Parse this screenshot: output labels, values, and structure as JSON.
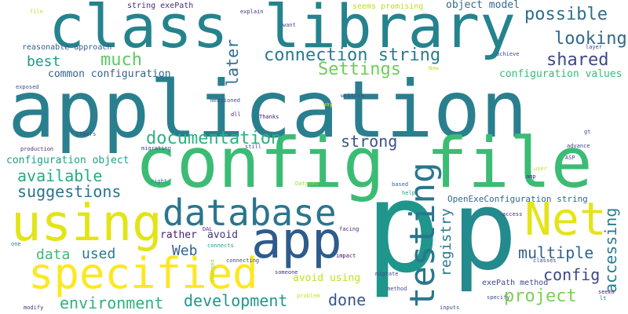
{
  "words": [
    {
      "text": "application",
      "color": "#2a7f8e"
    },
    {
      "text": "class library",
      "color": "#25838d"
    },
    {
      "text": "config file",
      "color": "#3bbc74"
    },
    {
      "text": "p",
      "color": "#1f968b"
    },
    {
      "text": "p",
      "color": "#238a8d"
    },
    {
      "text": "app",
      "color": "#2e5b8c"
    },
    {
      "text": "using",
      "color": "#e3e418"
    },
    {
      "text": "specified",
      "color": "#fde725"
    },
    {
      "text": "database",
      "color": "#2b758e"
    },
    {
      "text": "Net",
      "color": "#e5e419"
    },
    {
      "text": "testing",
      "color": "#2a768e"
    },
    {
      "text": "connection string",
      "color": "#287c8e"
    },
    {
      "text": "documentation",
      "color": "#2db27d"
    },
    {
      "text": "later",
      "color": "#2f6c8e"
    },
    {
      "text": "possible",
      "color": "#2e6e8e"
    },
    {
      "text": "looking",
      "color": "#31688e"
    },
    {
      "text": "shared",
      "color": "#3f4889"
    },
    {
      "text": "much",
      "color": "#5ec962"
    },
    {
      "text": "best",
      "color": "#1f9a8a"
    },
    {
      "text": "Settings",
      "color": "#6ccd5a"
    },
    {
      "text": "strong",
      "color": "#3b528b"
    },
    {
      "text": "available",
      "color": "#25ab82"
    },
    {
      "text": "suggestions",
      "color": "#2c738e"
    },
    {
      "text": "configuration values",
      "color": "#38b977"
    },
    {
      "text": "configuration object",
      "color": "#1fa088"
    },
    {
      "text": "common configuration",
      "color": "#33638d"
    },
    {
      "text": "environment",
      "color": "#2db27d"
    },
    {
      "text": "development",
      "color": "#1f978b"
    },
    {
      "text": "project",
      "color": "#7ad151"
    },
    {
      "text": "done",
      "color": "#39568c"
    },
    {
      "text": "multiple",
      "color": "#33638d"
    },
    {
      "text": "config",
      "color": "#3f4788"
    },
    {
      "text": "accessing",
      "color": "#287d8e"
    },
    {
      "text": "registry",
      "color": "#2a788e"
    },
    {
      "text": "data",
      "color": "#3aba76"
    },
    {
      "text": "used",
      "color": "#29798e"
    },
    {
      "text": "Web",
      "color": "#34608d"
    },
    {
      "text": "rather",
      "color": "#481f70"
    },
    {
      "text": "avoid",
      "color": "#453781"
    },
    {
      "text": "avoid using",
      "color": "#c2df23"
    },
    {
      "text": "exePath method",
      "color": "#3e4989"
    },
    {
      "text": "OpenExeConfiguration string",
      "color": "#30698e"
    },
    {
      "text": "object model",
      "color": "#2f6b8e"
    },
    {
      "text": "string exePath",
      "color": "#472c7a"
    },
    {
      "text": "reasonable approach",
      "color": "#365c8d"
    },
    {
      "text": "seems promising",
      "color": "#b8de29"
    },
    {
      "text": "file",
      "color": "#c0df25"
    },
    {
      "text": "explain",
      "color": "#46327e"
    },
    {
      "text": "want",
      "color": "#3c4f8a"
    },
    {
      "text": "layer",
      "color": "#404688"
    },
    {
      "text": "achieve",
      "color": "#3c4f8a"
    },
    {
      "text": "exposed",
      "color": "#3d4e8a"
    },
    {
      "text": "Now",
      "color": "#bddf26"
    },
    {
      "text": "written",
      "color": "#3f4788"
    },
    {
      "text": "way",
      "color": "#dde318"
    },
    {
      "text": "mentioned",
      "color": "#3b528b"
    },
    {
      "text": "dll",
      "color": "#482576"
    },
    {
      "text": "Thanks",
      "color": "#471164"
    },
    {
      "text": "gt",
      "color": "#3b528b"
    },
    {
      "text": "Cheers",
      "color": "#3c4f8a"
    },
    {
      "text": "production",
      "color": "#472d7b"
    },
    {
      "text": "migrating",
      "color": "#3e4989"
    },
    {
      "text": "still",
      "color": "#3e4a89"
    },
    {
      "text": "advance",
      "color": "#424186"
    },
    {
      "text": "ASP",
      "color": "#3e4989"
    },
    {
      "text": "right",
      "color": "#2c718e"
    },
    {
      "text": "Dataset",
      "color": "#9fda3a"
    },
    {
      "text": "based",
      "color": "#33638d"
    },
    {
      "text": "user",
      "color": "#b8de29"
    },
    {
      "text": "amp",
      "color": "#482475"
    },
    {
      "text": "help",
      "color": "#1fa287"
    },
    {
      "text": "DAL",
      "color": "#46337f"
    },
    {
      "text": "facing",
      "color": "#482979"
    },
    {
      "text": "access",
      "color": "#482878"
    },
    {
      "text": "one",
      "color": "#2a778e"
    },
    {
      "text": "connects",
      "color": "#1e9c89"
    },
    {
      "text": "connecting",
      "color": "#3e4989"
    },
    {
      "text": "impact",
      "color": "#46085c"
    },
    {
      "text": "classes",
      "color": "#3f4889"
    },
    {
      "text": "changed",
      "color": "#95d840"
    },
    {
      "text": "someone",
      "color": "#46337f"
    },
    {
      "text": "migrate",
      "color": "#3e4989"
    },
    {
      "text": "seems",
      "color": "#48186a"
    },
    {
      "text": "lt",
      "color": "#2a788e"
    },
    {
      "text": "problem",
      "color": "#c8e020"
    },
    {
      "text": "method",
      "color": "#3e4a89"
    },
    {
      "text": "specify",
      "color": "#3b528b"
    },
    {
      "text": "modify",
      "color": "#46327e"
    },
    {
      "text": "inputs",
      "color": "#3e4989"
    }
  ]
}
